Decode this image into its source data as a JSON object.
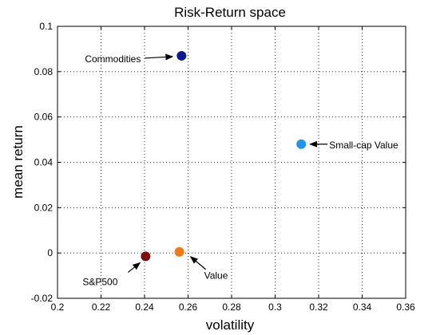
{
  "chart_data": {
    "type": "scatter",
    "title": "Risk-Return space",
    "xlabel": "volatility",
    "ylabel": "mean return",
    "xlim": [
      0.2,
      0.36
    ],
    "ylim": [
      -0.02,
      0.1
    ],
    "xticks": [
      "0.2",
      "0.22",
      "0.24",
      "0.26",
      "0.28",
      "0.3",
      "0.32",
      "0.34",
      "0.36"
    ],
    "yticks": [
      "-0.02",
      "0",
      "0.02",
      "0.04",
      "0.06",
      "0.08",
      "0.1"
    ],
    "grid": true,
    "points": [
      {
        "label": "Commodities",
        "x": 0.257,
        "y": 0.087,
        "color": "#0c1a8a"
      },
      {
        "label": "Small-cap Value",
        "x": 0.312,
        "y": 0.048,
        "color": "#2196e8"
      },
      {
        "label": "S&P500",
        "x": 0.2405,
        "y": -0.0015,
        "color": "#7a1010"
      },
      {
        "label": "Value",
        "x": 0.256,
        "y": 0.0005,
        "color": "#f07a1a"
      }
    ]
  }
}
